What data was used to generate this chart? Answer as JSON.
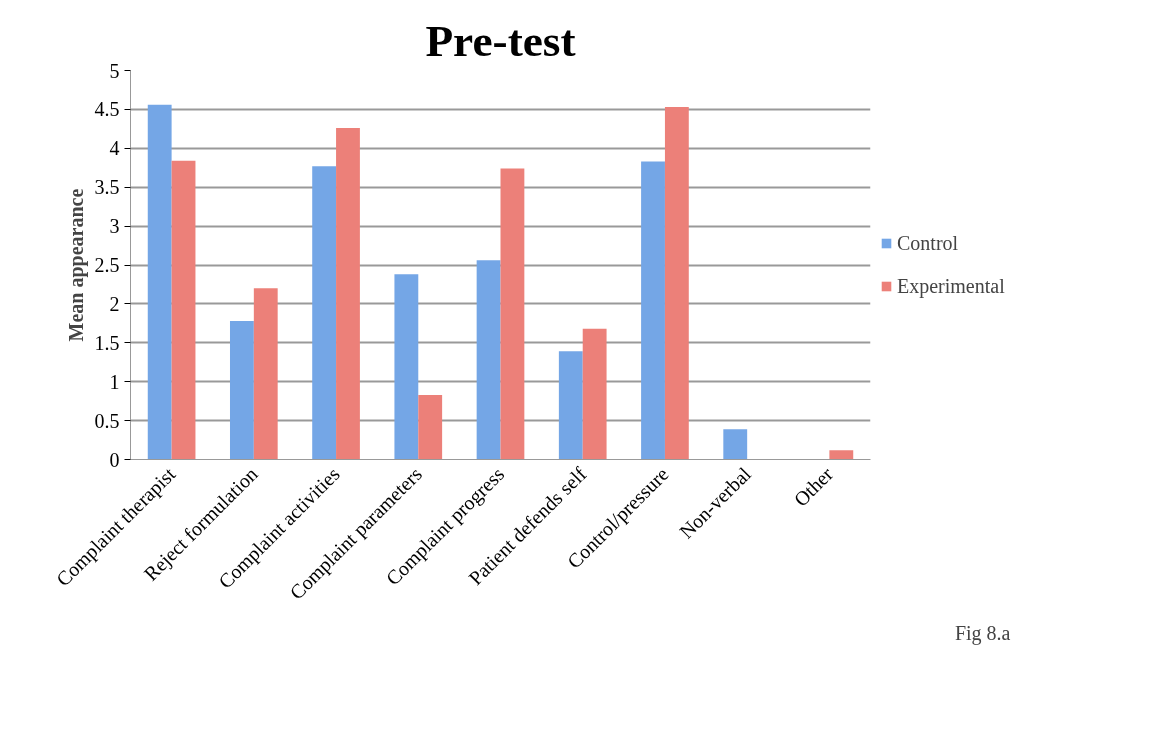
{
  "chart_data": {
    "type": "bar",
    "title": "Pre-test",
    "ylabel": "Mean appearance",
    "categories": [
      "Complaint therapist",
      "Reject formulation",
      "Complaint activities",
      "Complaint parameters",
      "Complaint progress",
      "Patient defends self",
      "Control/pressure",
      "Non-verbal",
      "Other"
    ],
    "series": [
      {
        "name": "Control",
        "color": "#74a6e6",
        "values": [
          4.56,
          1.78,
          3.77,
          2.38,
          2.56,
          1.39,
          3.83,
          0.39,
          0
        ]
      },
      {
        "name": "Experimental",
        "color": "#ec8079",
        "values": [
          3.84,
          2.2,
          4.26,
          0.83,
          3.74,
          1.68,
          4.53,
          0,
          0.12
        ]
      }
    ],
    "ylim": [
      0,
      5
    ],
    "yticks": [
      0,
      0.5,
      1,
      1.5,
      2,
      2.5,
      3,
      3.5,
      4,
      4.5,
      5
    ],
    "grid": "y",
    "legend": "right",
    "annotations": [
      "Fig 8.a"
    ]
  }
}
